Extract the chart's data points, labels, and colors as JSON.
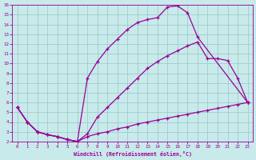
{
  "xlabel": "Windchill (Refroidissement éolien,°C)",
  "bg_color": "#c8eaea",
  "grid_color": "#a0cccc",
  "line_color": "#990099",
  "xlim": [
    -0.5,
    23.5
  ],
  "ylim": [
    2,
    16
  ],
  "xticks": [
    0,
    1,
    2,
    3,
    4,
    5,
    6,
    7,
    8,
    9,
    10,
    11,
    12,
    13,
    14,
    15,
    16,
    17,
    18,
    19,
    20,
    21,
    22,
    23
  ],
  "yticks": [
    2,
    3,
    4,
    5,
    6,
    7,
    8,
    9,
    10,
    11,
    12,
    13,
    14,
    15,
    16
  ],
  "curve1_x": [
    0,
    1,
    2,
    3,
    4,
    5,
    6,
    7,
    8,
    9,
    10,
    11,
    12,
    13,
    14,
    15,
    16,
    17,
    18,
    23
  ],
  "curve1_y": [
    5.5,
    4.0,
    3.0,
    2.7,
    2.5,
    2.2,
    2.0,
    8.5,
    10.2,
    11.5,
    12.5,
    13.5,
    14.2,
    14.5,
    14.7,
    15.8,
    15.9,
    15.2,
    12.7,
    6.0
  ],
  "curve2_x": [
    0,
    1,
    2,
    3,
    4,
    5,
    6,
    7,
    8,
    9,
    10,
    11,
    12,
    13,
    14,
    15,
    16,
    17,
    18,
    19,
    20,
    21,
    22,
    23
  ],
  "curve2_y": [
    5.5,
    4.0,
    3.0,
    2.7,
    2.5,
    2.2,
    2.0,
    2.8,
    4.5,
    5.5,
    6.5,
    7.5,
    8.5,
    9.5,
    10.2,
    10.8,
    11.3,
    11.8,
    12.2,
    10.5,
    10.5,
    10.3,
    8.5,
    6.0
  ],
  "curve3_x": [
    0,
    1,
    2,
    3,
    4,
    5,
    6,
    7,
    8,
    9,
    10,
    11,
    12,
    13,
    14,
    15,
    16,
    17,
    18,
    19,
    20,
    21,
    22,
    23
  ],
  "curve3_y": [
    5.5,
    4.0,
    3.0,
    2.7,
    2.5,
    2.2,
    2.0,
    2.5,
    2.8,
    3.0,
    3.3,
    3.5,
    3.8,
    4.0,
    4.2,
    4.4,
    4.6,
    4.8,
    5.0,
    5.2,
    5.4,
    5.6,
    5.8,
    6.0
  ]
}
